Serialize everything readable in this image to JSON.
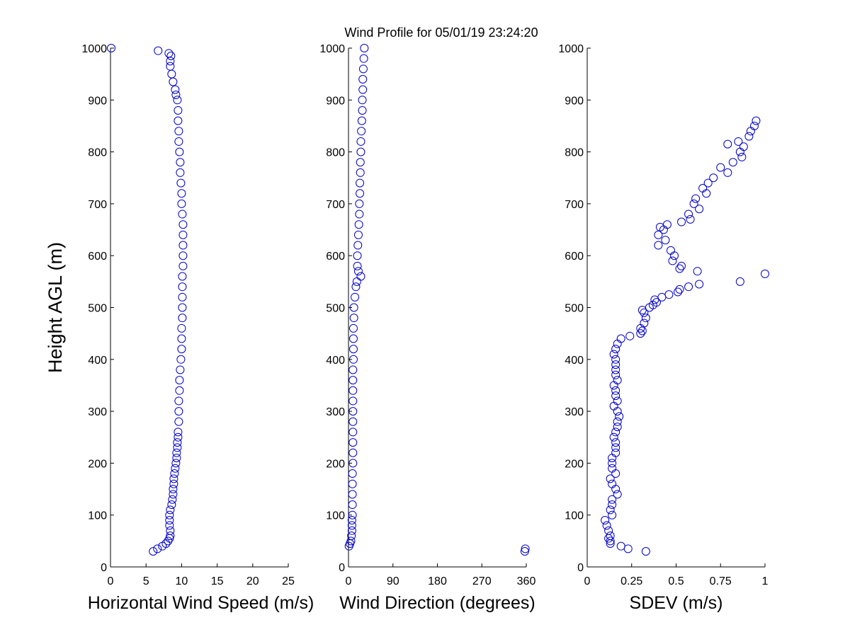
{
  "title": "Wind Profile for  05/01/19 23:24:20",
  "chart_data": [
    {
      "type": "scatter",
      "xlabel": "Horizontal Wind Speed (m/s)",
      "ylabel": "Height AGL (m)",
      "xlim": [
        0,
        25
      ],
      "ylim": [
        0,
        1000
      ],
      "xticks": [
        "0",
        "5",
        "10",
        "15",
        "20",
        "25"
      ],
      "yticks": [
        "0",
        "100",
        "200",
        "300",
        "400",
        "500",
        "600",
        "700",
        "800",
        "900",
        "1000"
      ],
      "marker": "o",
      "color": "#0000cc",
      "y": [
        30,
        35,
        40,
        45,
        50,
        55,
        60,
        70,
        80,
        90,
        100,
        110,
        120,
        130,
        140,
        150,
        160,
        170,
        180,
        190,
        200,
        210,
        220,
        230,
        240,
        250,
        260,
        280,
        300,
        320,
        340,
        360,
        380,
        400,
        420,
        440,
        460,
        480,
        500,
        520,
        540,
        560,
        580,
        600,
        620,
        640,
        660,
        680,
        700,
        720,
        740,
        760,
        780,
        800,
        820,
        840,
        860,
        880,
        900,
        910,
        920,
        935,
        950,
        965,
        975,
        985,
        990,
        995,
        1000
      ],
      "x": [
        6.0,
        6.6,
        7.3,
        7.8,
        8.1,
        8.3,
        8.4,
        8.4,
        8.3,
        8.3,
        8.3,
        8.4,
        8.6,
        8.7,
        8.8,
        8.8,
        8.9,
        8.9,
        9.0,
        9.1,
        9.2,
        9.3,
        9.3,
        9.4,
        9.4,
        9.5,
        9.5,
        9.6,
        9.6,
        9.6,
        9.7,
        9.7,
        9.8,
        9.9,
        10.0,
        10.0,
        10.0,
        10.1,
        10.1,
        10.1,
        10.1,
        10.1,
        10.2,
        10.2,
        10.2,
        10.2,
        10.2,
        10.1,
        10.0,
        10.0,
        9.9,
        9.8,
        9.8,
        9.7,
        9.6,
        9.6,
        9.5,
        9.5,
        9.4,
        9.2,
        9.1,
        8.8,
        8.6,
        8.4,
        8.4,
        8.5,
        8.2,
        6.7,
        0.1
      ]
    },
    {
      "type": "scatter",
      "xlabel": "Wind Direction (degrees)",
      "ylabel": "",
      "xlim": [
        0,
        360
      ],
      "ylim": [
        0,
        1000
      ],
      "xticks": [
        "0",
        "90",
        "180",
        "270",
        "360"
      ],
      "yticks": [
        "0",
        "100",
        "200",
        "300",
        "400",
        "500",
        "600",
        "700",
        "800",
        "900",
        "1000"
      ],
      "marker": "o",
      "color": "#0000cc",
      "y": [
        30,
        35,
        40,
        45,
        50,
        60,
        70,
        80,
        90,
        100,
        120,
        140,
        160,
        180,
        200,
        220,
        240,
        260,
        280,
        300,
        320,
        340,
        360,
        380,
        400,
        420,
        440,
        460,
        480,
        500,
        520,
        540,
        550,
        560,
        570,
        580,
        600,
        620,
        640,
        660,
        680,
        700,
        720,
        740,
        760,
        780,
        800,
        820,
        840,
        860,
        880,
        900,
        920,
        940,
        960,
        980,
        1000
      ],
      "x": [
        357,
        358,
        1,
        3,
        5,
        6,
        7,
        7,
        7,
        8,
        8,
        8,
        8,
        8,
        9,
        9,
        9,
        9,
        9,
        9,
        9,
        9,
        9,
        9,
        10,
        10,
        10,
        10,
        11,
        11,
        13,
        15,
        17,
        25,
        20,
        18,
        18,
        19,
        20,
        21,
        22,
        22,
        23,
        23,
        24,
        24,
        25,
        25,
        26,
        27,
        28,
        28,
        29,
        29,
        30,
        31,
        32
      ]
    },
    {
      "type": "scatter",
      "xlabel": "SDEV  (m/s)",
      "ylabel": "",
      "xlim": [
        0,
        1
      ],
      "ylim": [
        0,
        1000
      ],
      "xticks": [
        "0",
        "0.25",
        "0.5",
        "0.75",
        "1"
      ],
      "yticks": [
        "0",
        "100",
        "200",
        "300",
        "400",
        "500",
        "600",
        "700",
        "800",
        "900",
        "1000"
      ],
      "marker": "o",
      "color": "#0000cc",
      "y": [
        30,
        35,
        40,
        45,
        50,
        55,
        60,
        70,
        80,
        90,
        100,
        110,
        120,
        130,
        140,
        150,
        160,
        170,
        180,
        190,
        200,
        210,
        220,
        230,
        240,
        250,
        260,
        270,
        280,
        290,
        300,
        310,
        320,
        330,
        340,
        350,
        360,
        370,
        380,
        390,
        400,
        410,
        420,
        430,
        440,
        445,
        450,
        455,
        460,
        470,
        480,
        490,
        495,
        500,
        505,
        510,
        515,
        520,
        525,
        530,
        535,
        540,
        545,
        550,
        565,
        570,
        575,
        580,
        590,
        600,
        610,
        620,
        630,
        640,
        650,
        655,
        660,
        665,
        670,
        680,
        690,
        700,
        710,
        720,
        730,
        740,
        750,
        760,
        770,
        780,
        790,
        800,
        810,
        815,
        820,
        830,
        840,
        850,
        860
      ],
      "x": [
        0.33,
        0.23,
        0.19,
        0.13,
        0.13,
        0.12,
        0.13,
        0.12,
        0.11,
        0.1,
        0.14,
        0.13,
        0.14,
        0.14,
        0.17,
        0.16,
        0.14,
        0.13,
        0.16,
        0.14,
        0.14,
        0.14,
        0.16,
        0.16,
        0.16,
        0.15,
        0.16,
        0.17,
        0.17,
        0.18,
        0.17,
        0.15,
        0.17,
        0.16,
        0.16,
        0.15,
        0.17,
        0.16,
        0.16,
        0.16,
        0.16,
        0.15,
        0.16,
        0.17,
        0.19,
        0.24,
        0.3,
        0.31,
        0.3,
        0.32,
        0.33,
        0.32,
        0.31,
        0.35,
        0.37,
        0.39,
        0.38,
        0.42,
        0.46,
        0.51,
        0.52,
        0.57,
        0.63,
        0.86,
        1.0,
        0.62,
        0.52,
        0.53,
        0.48,
        0.49,
        0.47,
        0.4,
        0.44,
        0.4,
        0.43,
        0.41,
        0.45,
        0.53,
        0.58,
        0.57,
        0.63,
        0.6,
        0.61,
        0.67,
        0.65,
        0.68,
        0.71,
        0.79,
        0.75,
        0.82,
        0.87,
        0.86,
        0.88,
        0.79,
        0.85,
        0.91,
        0.92,
        0.94,
        0.95
      ]
    }
  ]
}
